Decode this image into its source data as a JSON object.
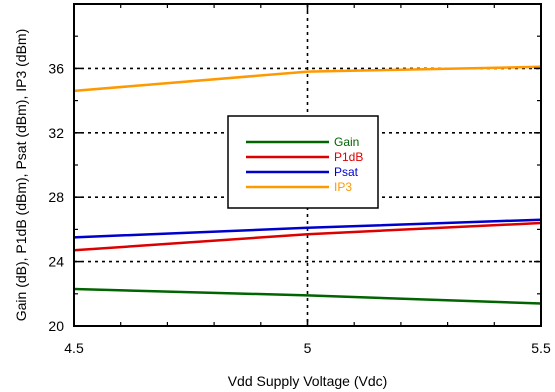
{
  "chart_data": {
    "type": "line",
    "title": "",
    "xlabel": "Vdd Supply Voltage (Vdc)",
    "ylabel": "Gain (dB), P1dB (dBm), Psat (dBm), IP3 (dBm)",
    "x": [
      4.5,
      5,
      5.5
    ],
    "xlim": [
      4.5,
      5.5
    ],
    "ylim": [
      20,
      40
    ],
    "x_ticks": [
      "4.5",
      "5",
      "5.5"
    ],
    "y_ticks": [
      "20",
      "24",
      "28",
      "32",
      "36"
    ],
    "grid": "dotted",
    "legend_position": "center",
    "series": [
      {
        "name": "Gain",
        "color": "#006400",
        "values": [
          22.3,
          21.9,
          21.4
        ]
      },
      {
        "name": "P1dB",
        "color": "#dd0000",
        "values": [
          24.7,
          25.7,
          26.4
        ]
      },
      {
        "name": "Psat",
        "color": "#0000cc",
        "values": [
          25.5,
          26.1,
          26.6
        ]
      },
      {
        "name": "IP3",
        "color": "#ff9900",
        "values": [
          34.6,
          35.8,
          36.1
        ]
      }
    ]
  }
}
